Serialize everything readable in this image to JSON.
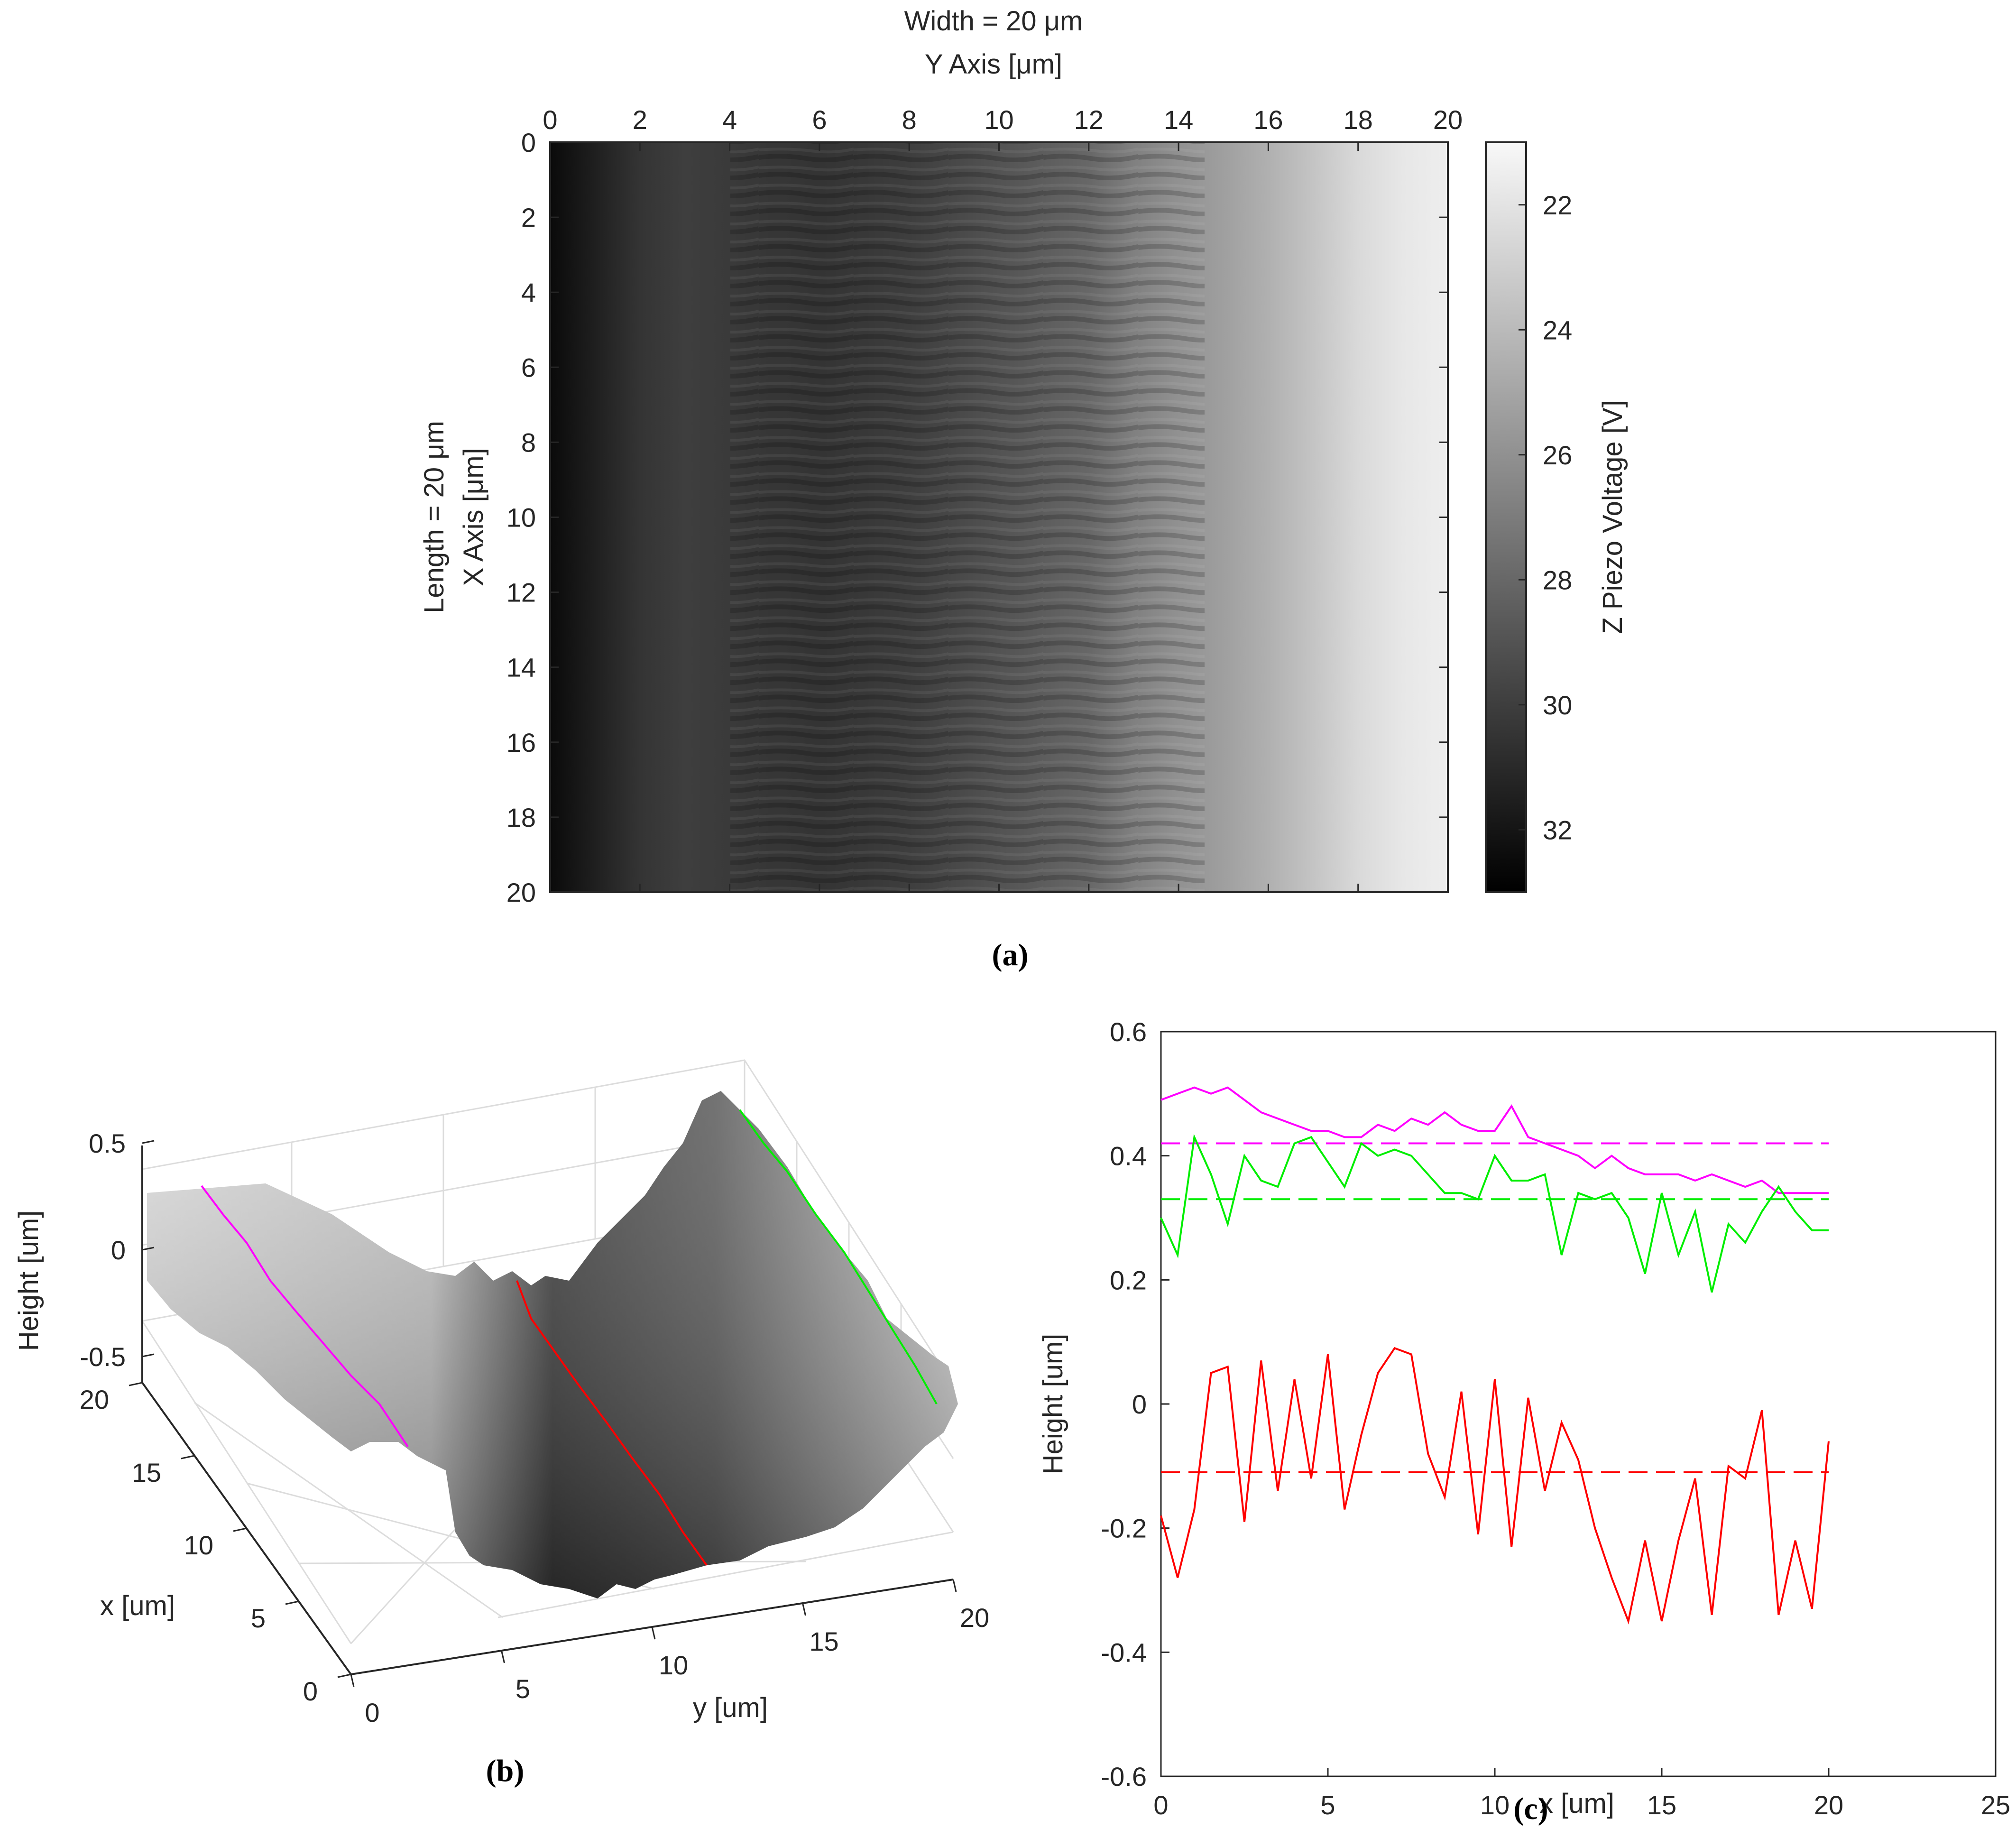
{
  "panel_a": {
    "caption": "(a)",
    "title_line1": "Width = 20 μm",
    "title_line2": "Y Axis [μm]",
    "ylabel_line1": "Length = 20 μm",
    "ylabel_line2": "X Axis [μm]",
    "colorbar_label": "Z Piezo Voltage [V]",
    "x_ticks": [
      "0",
      "2",
      "4",
      "6",
      "8",
      "10",
      "12",
      "14",
      "16",
      "18",
      "20"
    ],
    "y_ticks": [
      "0",
      "2",
      "4",
      "6",
      "8",
      "10",
      "12",
      "14",
      "16",
      "18",
      "20"
    ],
    "colorbar_ticks": [
      "22",
      "24",
      "26",
      "28",
      "30",
      "32"
    ]
  },
  "panel_b": {
    "caption": "(b)",
    "zlabel": "Height [um]",
    "xlabel": "x [um]",
    "ylabel": "y [um]",
    "z_ticks": [
      "0.5",
      "0",
      "-0.5"
    ],
    "x_ticks": [
      "20",
      "15",
      "10",
      "5",
      "0"
    ],
    "y_ticks": [
      "0",
      "5",
      "10",
      "15",
      "20"
    ]
  },
  "panel_c": {
    "caption": "(c)",
    "xlabel": "x [um]",
    "ylabel": "Height [um]",
    "x_ticks": [
      "0",
      "5",
      "10",
      "15",
      "20",
      "25"
    ],
    "y_ticks": [
      "0.6",
      "0.4",
      "0.2",
      "0",
      "-0.2",
      "-0.4",
      "-0.6"
    ]
  },
  "colors": {
    "magenta": "#ff00ff",
    "green": "#00ee00",
    "red": "#ff0000",
    "axis": "#262626"
  },
  "chart_data": [
    {
      "type": "heatmap",
      "panel": "a",
      "x_range_um": [
        0,
        20
      ],
      "y_range_um": [
        0,
        20
      ],
      "colorbar_range_V": [
        21,
        33
      ],
      "colormap": "gray (high voltage = dark)",
      "column_profile_V": [
        32.5,
        31.5,
        30.5,
        30.0,
        30.2,
        30.4,
        30.5,
        30.3,
        30.0,
        29.5,
        29.0,
        28.5,
        28.0,
        26.8,
        26.0,
        25.3,
        24.5,
        23.5,
        22.5,
        21.8,
        21.5
      ]
    },
    {
      "type": "line",
      "panel": "c",
      "xlabel": "x [um]",
      "ylabel": "Height [um]",
      "xlim": [
        0,
        25
      ],
      "ylim": [
        -0.6,
        0.6
      ],
      "x": [
        0,
        0.5,
        1,
        1.5,
        2,
        2.5,
        3,
        3.5,
        4,
        4.5,
        5,
        5.5,
        6,
        6.5,
        7,
        7.5,
        8,
        8.5,
        9,
        9.5,
        10,
        10.5,
        11,
        11.5,
        12,
        12.5,
        13,
        13.5,
        14,
        14.5,
        15,
        15.5,
        16,
        16.5,
        17,
        17.5,
        18,
        18.5,
        19,
        19.5,
        20
      ],
      "series": [
        {
          "color": "magenta",
          "values": [
            0.49,
            0.5,
            0.51,
            0.5,
            0.51,
            0.49,
            0.47,
            0.46,
            0.45,
            0.44,
            0.44,
            0.43,
            0.43,
            0.45,
            0.44,
            0.46,
            0.45,
            0.47,
            0.45,
            0.44,
            0.44,
            0.48,
            0.43,
            0.42,
            0.41,
            0.4,
            0.38,
            0.4,
            0.38,
            0.37,
            0.37,
            0.37,
            0.36,
            0.37,
            0.36,
            0.35,
            0.36,
            0.34,
            0.34,
            0.34,
            0.34
          ],
          "mean": 0.42
        },
        {
          "color": "green",
          "values": [
            0.3,
            0.24,
            0.43,
            0.37,
            0.29,
            0.4,
            0.36,
            0.35,
            0.42,
            0.43,
            0.39,
            0.35,
            0.42,
            0.4,
            0.41,
            0.4,
            0.37,
            0.34,
            0.34,
            0.33,
            0.4,
            0.36,
            0.36,
            0.37,
            0.24,
            0.34,
            0.33,
            0.34,
            0.3,
            0.21,
            0.34,
            0.24,
            0.31,
            0.18,
            0.29,
            0.26,
            0.31,
            0.35,
            0.31,
            0.28,
            0.28
          ],
          "mean": 0.33
        },
        {
          "color": "red",
          "values": [
            -0.18,
            -0.28,
            -0.17,
            0.05,
            0.06,
            -0.19,
            0.07,
            -0.14,
            0.04,
            -0.12,
            0.08,
            -0.17,
            -0.05,
            0.05,
            0.09,
            0.08,
            -0.08,
            -0.15,
            0.02,
            -0.21,
            0.04,
            -0.23,
            0.01,
            -0.14,
            -0.03,
            -0.09,
            -0.2,
            -0.28,
            -0.35,
            -0.22,
            -0.35,
            -0.22,
            -0.12,
            -0.34,
            -0.1,
            -0.12,
            -0.01,
            -0.34,
            -0.22,
            -0.33,
            -0.06
          ],
          "mean": -0.11
        }
      ]
    }
  ]
}
